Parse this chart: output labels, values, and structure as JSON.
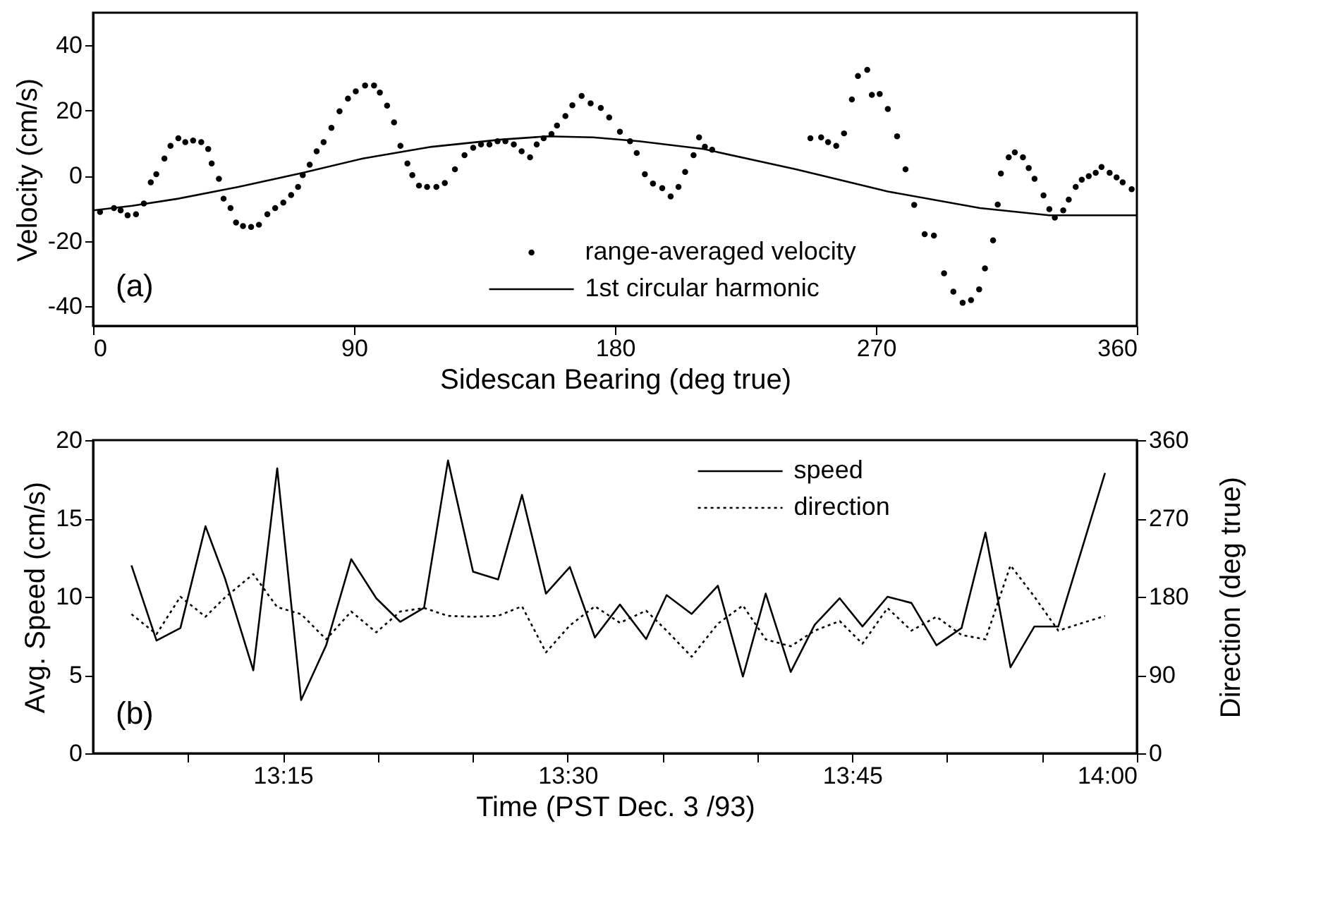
{
  "chart_data": [
    {
      "type": "scatter",
      "xlabel": "Sidescan Bearing (deg true)",
      "ylabel": "Velocity (cm/s)",
      "xlim": [
        0,
        360
      ],
      "xticks": [
        0,
        90,
        180,
        270,
        360
      ],
      "ylim": [
        -46,
        50
      ],
      "yticks": [
        -40,
        -20,
        0,
        20,
        40
      ],
      "legend": "bottom",
      "annotations": [
        "(a)"
      ],
      "series": [
        {
          "name": "range-averaged velocity",
          "type": "scatter",
          "marker": "circle",
          "color": "#000000",
          "x": [
            2.4,
            7.2,
            9.5,
            11.9,
            14.8,
            17.5,
            19.9,
            21.8,
            24.6,
            26.7,
            29.4,
            31.8,
            34.5,
            37.3,
            39.7,
            40.9,
            43.4,
            45.0,
            47.4,
            49.3,
            51.7,
            54.5,
            57.2,
            60.1,
            62.8,
            65.6,
            68.3,
            70.7,
            72.3,
            74.7,
            77.1,
            79.5,
            82.2,
            85.0,
            87.9,
            90.6,
            93.8,
            96.9,
            98.9,
            101.4,
            103.8,
            106.0,
            108.4,
            110.1,
            112.4,
            115.2,
            118.4,
            121.3,
            124.8,
            128.1,
            131.1,
            133.8,
            136.7,
            139.5,
            142.2,
            145.1,
            147.8,
            150.7,
            153.0,
            155.4,
            158.1,
            160.0,
            162.9,
            165.3,
            168.5,
            171.6,
            175.1,
            178.0,
            181.7,
            185.2,
            187.5,
            190.3,
            193.1,
            196.3,
            199.2,
            201.9,
            204.2,
            207.1,
            209.0,
            211.0,
            213.5,
            247.4,
            251.1,
            253.5,
            256.3,
            259.0,
            261.7,
            263.8,
            267.0,
            268.6,
            271.3,
            274.1,
            277.3,
            280.2,
            283.2,
            286.8,
            290.0,
            293.5,
            296.7,
            299.9,
            302.8,
            305.6,
            307.6,
            310.4,
            312.0,
            313.1,
            315.8,
            317.9,
            320.7,
            322.7,
            324.7,
            327.8,
            329.8,
            331.7,
            334.6,
            336.5,
            338.9,
            341.0,
            343.4,
            345.8,
            347.8,
            350.6,
            353.0,
            355.1,
            358.2
          ],
          "values": [
            -11.1,
            -9.9,
            -10.6,
            -12.1,
            -11.8,
            -8.5,
            -2.0,
            0.5,
            5.3,
            9.2,
            11.5,
            10.3,
            10.8,
            10.3,
            8.2,
            3.8,
            -0.9,
            -7.0,
            -9.9,
            -14.3,
            -15.4,
            -15.7,
            -15.0,
            -11.8,
            -9.9,
            -8.2,
            -5.9,
            -3.4,
            0.2,
            3.4,
            7.5,
            10.3,
            14.7,
            19.8,
            23.7,
            25.9,
            27.7,
            27.7,
            25.5,
            21.5,
            16.4,
            9.2,
            3.8,
            0.2,
            -3.0,
            -3.4,
            -3.4,
            -2.2,
            2.0,
            6.3,
            8.6,
            9.6,
            9.6,
            10.6,
            10.6,
            9.6,
            7.5,
            5.7,
            9.6,
            11.5,
            12.8,
            15.4,
            18.3,
            21.6,
            24.5,
            22.2,
            20.8,
            17.9,
            13.5,
            10.6,
            7.0,
            0.5,
            -2.4,
            -3.8,
            -6.3,
            -3.4,
            1.2,
            6.3,
            11.8,
            8.9,
            8.0,
            11.5,
            11.8,
            10.3,
            9.2,
            13.0,
            23.4,
            30.6,
            32.5,
            24.8,
            25.1,
            20.5,
            12.1,
            2.0,
            -8.9,
            -17.9,
            -18.3,
            -29.9,
            -35.5,
            -38.9,
            -38.1,
            -34.8,
            -28.4,
            -19.8,
            -8.8,
            0.7,
            5.7,
            7.2,
            5.7,
            2.4,
            -0.9,
            -6.0,
            -10.2,
            -12.8,
            -10.6,
            -7.3,
            -3.4,
            -1.2,
            -0.1,
            0.9,
            2.7,
            0.9,
            -0.5,
            -2.0,
            -4.1
          ]
        },
        {
          "name": "1st circular harmonic",
          "type": "line",
          "line_style": "solid",
          "color": "#000000",
          "x": [
            0,
            13.5,
            29.4,
            50.1,
            72.3,
            93.0,
            116.8,
            140.7,
            156.6,
            172.5,
            188.3,
            210.6,
            242.4,
            274.1,
            305.9,
            329.8,
            360
          ],
          "values": [
            -10.6,
            -9.2,
            -7.0,
            -3.4,
            0.9,
            5.3,
            8.9,
            11.1,
            12.1,
            11.8,
            10.6,
            8.2,
            2.0,
            -4.8,
            -9.9,
            -12.1,
            -12.1
          ]
        }
      ]
    },
    {
      "type": "line",
      "xlabel": "Time (PST Dec. 3 /93)",
      "ylabel": "Avg. Speed (cm/s)",
      "y2label": "Direction (deg true)",
      "xlim": [
        13.0833,
        14
      ],
      "xticks": [
        {
          "value": 13.1667,
          "label": null
        },
        {
          "value": 13.25,
          "label": "13:15"
        },
        {
          "value": 13.3333,
          "label": null
        },
        {
          "value": 13.4167,
          "label": null
        },
        {
          "value": 13.5,
          "label": "13:30"
        },
        {
          "value": 13.5833,
          "label": null
        },
        {
          "value": 13.6667,
          "label": null
        },
        {
          "value": 13.75,
          "label": "13:45"
        },
        {
          "value": 13.8333,
          "label": null
        },
        {
          "value": 13.9167,
          "label": null
        },
        {
          "value": 14,
          "label": "14:00"
        }
      ],
      "ylim": [
        0,
        20
      ],
      "yticks": [
        0,
        5,
        10,
        15,
        20
      ],
      "y2lim": [
        0,
        360
      ],
      "y2ticks": [
        0,
        90,
        180,
        270,
        360
      ],
      "legend": "top right",
      "annotations": [
        "(b)"
      ],
      "x": [
        13.117,
        13.139,
        13.16,
        13.182,
        13.199,
        13.224,
        13.245,
        13.266,
        13.288,
        13.31,
        13.332,
        13.353,
        13.374,
        13.395,
        13.417,
        13.439,
        13.46,
        13.481,
        13.502,
        13.524,
        13.546,
        13.569,
        13.587,
        13.609,
        13.632,
        13.654,
        13.674,
        13.696,
        13.717,
        13.739,
        13.759,
        13.781,
        13.802,
        13.824,
        13.846,
        13.867,
        13.889,
        13.91,
        13.931,
        13.972
      ],
      "series": [
        {
          "name": "speed",
          "color": "#000000",
          "line_style": "solid",
          "values": [
            12.0,
            7.2,
            8.0,
            14.5,
            11.2,
            5.3,
            18.2,
            3.4,
            6.9,
            12.4,
            9.9,
            8.4,
            9.3,
            18.7,
            11.6,
            11.1,
            16.5,
            10.2,
            11.9,
            7.4,
            9.5,
            7.3,
            10.1,
            8.9,
            10.7,
            4.9,
            10.2,
            5.2,
            8.2,
            9.9,
            8.1,
            10.0,
            9.6,
            6.9,
            8.0,
            14.1,
            5.5,
            8.1,
            8.1,
            17.9
          ]
        },
        {
          "name": "direction",
          "color": "#000000",
          "line_style": "dotted",
          "axis": "y2",
          "values": [
            160,
            137,
            180,
            157,
            179,
            206,
            168,
            160,
            131,
            163,
            139,
            163,
            167,
            158,
            157,
            158,
            169,
            116,
            147,
            169,
            150,
            164,
            141,
            111,
            149,
            170,
            131,
            123,
            141,
            152,
            126,
            167,
            141,
            157,
            136,
            131,
            216,
            180,
            141,
            158
          ]
        }
      ]
    }
  ]
}
